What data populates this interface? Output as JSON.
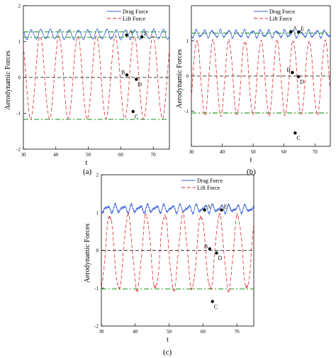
{
  "figure": {
    "panel_labels": [
      "(a)",
      "(b)",
      "(c)"
    ]
  },
  "chart_data": [
    {
      "type": "line",
      "panel": "(a)",
      "xlabel": "t",
      "ylabel": "Aerodynamic Forces",
      "xlim": [
        30,
        75
      ],
      "ylim": [
        -2,
        2
      ],
      "x_ticks": [
        30,
        40,
        50,
        60,
        70
      ],
      "y_ticks": [
        -2,
        -1,
        0,
        1,
        2
      ],
      "legend_position": "top-right",
      "series": [
        {
          "name": "Drag Force",
          "color": "#3b63d8",
          "style": "solid",
          "mean": 1.2,
          "amplitude": 0.13,
          "period": 2.9,
          "phase": 0.3,
          "noise": 0.03
        },
        {
          "name": "Lift Force",
          "color": "#e0252a",
          "style": "dashed",
          "mean": 0.0,
          "amplitude": 1.15,
          "period": 5.8,
          "phase": 1.2,
          "noise": 0.03
        }
      ],
      "reference_lines": [
        {
          "y": 1.27,
          "color": "#2f9e2f",
          "style": "dashdot"
        },
        {
          "y": 1.12,
          "color": "#2f9e2f",
          "style": "dashdot"
        },
        {
          "y": 0.0,
          "color": "#000000",
          "style": "dashed"
        },
        {
          "y": -1.17,
          "color": "#2f9e2f",
          "style": "dashdot"
        }
      ],
      "points": [
        {
          "label": "A",
          "x": 61.8,
          "y": 1.18
        },
        {
          "label": "E",
          "x": 66.5,
          "y": 1.13
        },
        {
          "label": "B",
          "x": 61.9,
          "y": 0.07
        },
        {
          "label": "D",
          "x": 64.8,
          "y": -0.05
        },
        {
          "label": "C",
          "x": 63.8,
          "y": -0.95
        }
      ]
    },
    {
      "type": "line",
      "panel": "(b)",
      "xlabel": "t",
      "ylabel": "Aerodynamic Forces",
      "xlim": [
        30,
        75
      ],
      "ylim": [
        -2,
        2
      ],
      "x_ticks": [
        30,
        40,
        50,
        60,
        70
      ],
      "y_ticks": [
        -1,
        0,
        1
      ],
      "legend_position": "top-right",
      "series": [
        {
          "name": "Drag Force",
          "color": "#3b63d8",
          "style": "solid",
          "mean": 1.2,
          "amplitude": 0.09,
          "period": 2.6,
          "phase": 0.6,
          "noise": 0.05
        },
        {
          "name": "Lift Force",
          "color": "#e0252a",
          "style": "dashed",
          "mean": -0.05,
          "amplitude": 1.05,
          "period": 5.2,
          "phase": 0.9,
          "noise": 0.06
        }
      ],
      "reference_lines": [
        {
          "y": 1.22,
          "color": "#2f9e2f",
          "style": "dashdot"
        },
        {
          "y": 0.0,
          "color": "#000000",
          "style": "dashed"
        },
        {
          "y": -1.05,
          "color": "#2f9e2f",
          "style": "dashdot"
        }
      ],
      "points": [
        {
          "label": "A",
          "x": 62.2,
          "y": 1.26
        },
        {
          "label": "E",
          "x": 64.7,
          "y": 1.25
        },
        {
          "label": "B",
          "x": 62.7,
          "y": 0.1
        },
        {
          "label": "D",
          "x": 64.7,
          "y": -0.02
        },
        {
          "label": "C",
          "x": 63.6,
          "y": -1.62
        }
      ]
    },
    {
      "type": "line",
      "panel": "(c)",
      "xlabel": "t",
      "ylabel": "Aerodynamic Forces",
      "xlim": [
        30,
        75
      ],
      "ylim": [
        -2,
        2
      ],
      "x_ticks": [
        30,
        40,
        50,
        60,
        70
      ],
      "y_ticks": [
        -2,
        -1,
        0,
        1,
        2
      ],
      "legend_position": "top-right",
      "series": [
        {
          "name": "Drag Force",
          "color": "#3b63d8",
          "style": "solid",
          "mean": 1.1,
          "amplitude": 0.08,
          "period": 2.4,
          "phase": 0.2,
          "noise": 0.08
        },
        {
          "name": "Lift Force",
          "color": "#e0252a",
          "style": "dashed",
          "mean": -0.05,
          "amplitude": 0.98,
          "period": 5.4,
          "phase": 1.5,
          "noise": 0.1
        }
      ],
      "reference_lines": [
        {
          "y": 0.0,
          "color": "#000000",
          "style": "dashed"
        },
        {
          "y": -1.02,
          "color": "#2f9e2f",
          "style": "dashdot"
        }
      ],
      "points": [
        {
          "label": "A",
          "x": 60.5,
          "y": 1.07
        },
        {
          "label": "E",
          "x": 65.5,
          "y": 1.07
        },
        {
          "label": "B",
          "x": 62.0,
          "y": 0.04
        },
        {
          "label": "D",
          "x": 64.0,
          "y": -0.07
        },
        {
          "label": "C",
          "x": 62.8,
          "y": -1.35
        }
      ]
    }
  ]
}
